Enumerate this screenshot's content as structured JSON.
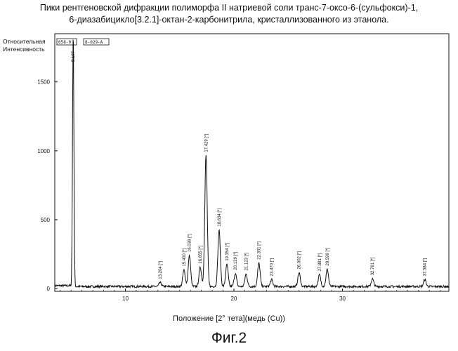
{
  "title_line1": "Пики рентгеновской дифракции полиморфа II натриевой соли транс-7-оксо-6-(сульфокси)-1,",
  "title_line2": "6-диазабицикло[3.2.1]-октан-2-карбонитрила, кристаллизованного из этанола.",
  "ylabel_line1": "Относительная",
  "ylabel_line2": "Интенсивность",
  "xlabel": "Положение [2° тета](медь (Cu))",
  "figure_caption": "Фиг.2",
  "sample_id": "658-0",
  "sample_id_suffix": "8-029-A",
  "chart_data": {
    "type": "line",
    "xlabel": "Положение [2° тета](медь (Cu))",
    "ylabel": "Относительная Интенсивность",
    "xlim": [
      3.5,
      39.8
    ],
    "ylim": [
      -20,
      1850
    ],
    "x_ticks": [
      10,
      20,
      30
    ],
    "y_ticks": [
      0,
      500,
      1000,
      1500
    ],
    "grid": false,
    "baseline": 15,
    "peaks": [
      {
        "x": 5.197,
        "y": 1850,
        "label": "5.197",
        "label_bracket": false
      },
      {
        "x": 13.204,
        "y": 28,
        "label": "13.204 [*]",
        "label_bracket": true
      },
      {
        "x": 15.4,
        "y": 120,
        "label": "15.400 [*]",
        "label_bracket": true
      },
      {
        "x": 15.9,
        "y": 225,
        "label": "16.038 [*]",
        "label_bracket": true
      },
      {
        "x": 16.9,
        "y": 140,
        "label": "16.855 [*]",
        "label_bracket": true
      },
      {
        "x": 17.429,
        "y": 950,
        "label": "17.429 [*]",
        "label_bracket": true
      },
      {
        "x": 18.634,
        "y": 410,
        "label": "18.634 [*]",
        "label_bracket": true
      },
      {
        "x": 19.354,
        "y": 160,
        "label": "19.354 [*]",
        "label_bracket": true
      },
      {
        "x": 20.129,
        "y": 95,
        "label": "20.129 [*]",
        "label_bracket": true
      },
      {
        "x": 21.123,
        "y": 90,
        "label": "21.123 [*]",
        "label_bracket": true
      },
      {
        "x": 22.301,
        "y": 170,
        "label": "22.301 [*]",
        "label_bracket": true
      },
      {
        "x": 23.47,
        "y": 50,
        "label": "23.470 [*]",
        "label_bracket": true
      },
      {
        "x": 26.002,
        "y": 100,
        "label": "26.002 [*]",
        "label_bracket": true
      },
      {
        "x": 27.881,
        "y": 85,
        "label": "27.881 [*]",
        "label_bracket": true
      },
      {
        "x": 28.599,
        "y": 125,
        "label": "28.599 [*]",
        "label_bracket": true
      },
      {
        "x": 32.761,
        "y": 55,
        "label": "32.761 [*]",
        "label_bracket": true
      },
      {
        "x": 37.584,
        "y": 50,
        "label": "37.584 [*]",
        "label_bracket": true
      }
    ]
  }
}
